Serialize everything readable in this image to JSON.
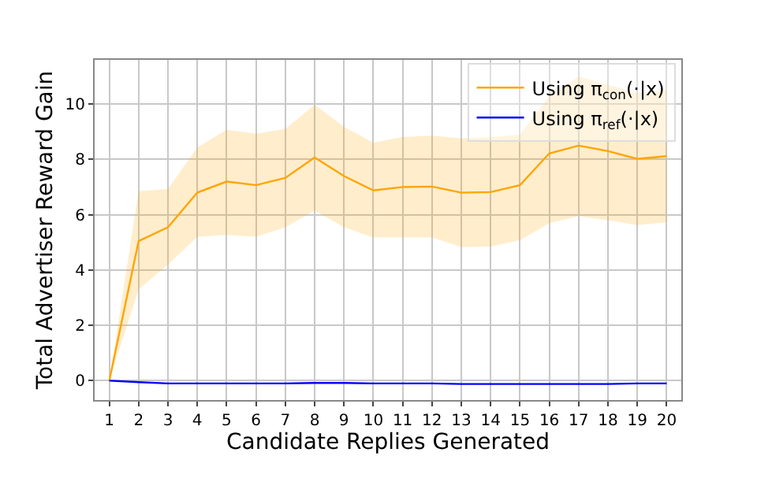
{
  "chart_data": {
    "type": "line",
    "xlabel": "Candidate Replies Generated",
    "ylabel": "Total Advertiser Reward Gain",
    "x": [
      1,
      2,
      3,
      4,
      5,
      6,
      7,
      8,
      9,
      10,
      11,
      12,
      13,
      14,
      15,
      16,
      17,
      18,
      19,
      20
    ],
    "xlim": [
      0.5,
      20.5
    ],
    "xticks": [
      1,
      2,
      3,
      4,
      5,
      6,
      7,
      8,
      9,
      10,
      11,
      12,
      13,
      14,
      15,
      16,
      17,
      18,
      19,
      20
    ],
    "ylim": [
      -0.7,
      11.6
    ],
    "yticks": [
      0,
      2,
      4,
      6,
      8,
      10
    ],
    "grid": true,
    "legend": "top right",
    "marker": "none",
    "line_style": "solid",
    "series": [
      {
        "name": "Using π$_{con}$(·|x)",
        "color": "#ffa500",
        "values": [
          0,
          5.05,
          5.55,
          6.8,
          7.2,
          7.07,
          7.33,
          8.07,
          7.4,
          6.88,
          7.0,
          7.02,
          6.8,
          6.82,
          7.07,
          8.22,
          8.5,
          8.3,
          8.02,
          8.12
        ],
        "lower": [
          0,
          3.3,
          4.2,
          5.2,
          5.27,
          5.2,
          5.55,
          6.15,
          5.55,
          5.18,
          5.18,
          5.18,
          4.83,
          4.85,
          5.08,
          5.7,
          5.95,
          5.8,
          5.63,
          5.73
        ],
        "upper": [
          0,
          6.85,
          6.93,
          8.43,
          9.07,
          8.93,
          9.1,
          9.98,
          9.18,
          8.6,
          8.81,
          8.86,
          8.76,
          8.8,
          8.9,
          10.3,
          11.0,
          10.7,
          10.4,
          10.5
        ]
      },
      {
        "name": "Using π$_{ref}$(·|x)",
        "color": "#0000ff",
        "values": [
          0,
          -0.05,
          -0.1,
          -0.1,
          -0.1,
          -0.1,
          -0.1,
          -0.08,
          -0.08,
          -0.1,
          -0.1,
          -0.1,
          -0.12,
          -0.12,
          -0.12,
          -0.12,
          -0.12,
          -0.12,
          -0.1,
          -0.1
        ]
      }
    ]
  }
}
